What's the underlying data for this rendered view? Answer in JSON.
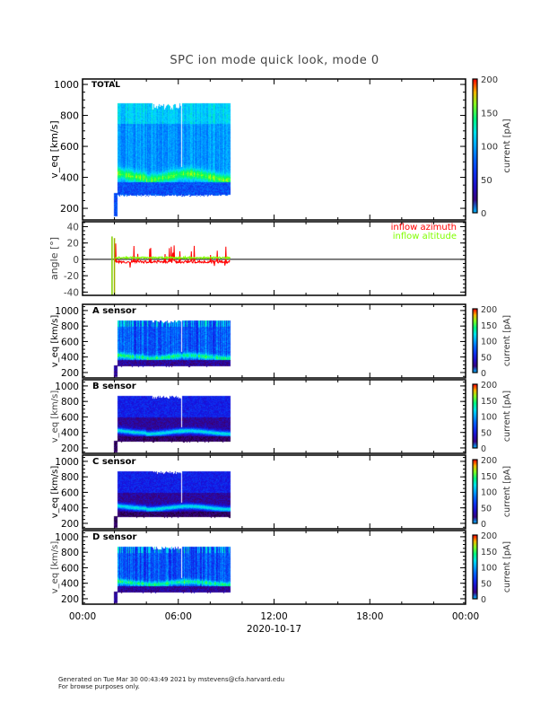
{
  "title": "SPC ion mode quick look, mode 0",
  "footer": {
    "line1": "Generated on Tue Mar 30 00:43:49 2021 by mstevens@cfa.harvard.edu",
    "line2": "For browse purposes only."
  },
  "chart_data": [
    {
      "type": "heatmap",
      "panel_label": "TOTAL",
      "ylabel": "v_eq [km/s]",
      "yticks": [
        "200",
        "400",
        "600",
        "800",
        "1000"
      ],
      "ylim": [
        125,
        1035
      ],
      "colorbar": {
        "label": "current [pA]",
        "ticks": [
          "0",
          "50",
          "100",
          "150",
          "200"
        ],
        "range": [
          0,
          200
        ]
      },
      "data_extent": {
        "time": [
          "01:55",
          "09:15"
        ],
        "velocity": [
          280,
          880
        ]
      },
      "beam_velocity": 420
    },
    {
      "type": "line",
      "ylabel": "angle [°]",
      "yticks": [
        "-40",
        "-20",
        "0",
        "20",
        "40"
      ],
      "ylim": [
        -44,
        46
      ],
      "series": [
        {
          "name": "inflow azimuth",
          "color": "#ff0000",
          "typical": -3
        },
        {
          "name": "inflow altitude",
          "color": "#80ff00",
          "typical": 2
        }
      ]
    },
    {
      "type": "heatmap",
      "panel_label": "A sensor",
      "ylabel": "v_eq [km/s]",
      "yticks": [
        "200",
        "400",
        "600",
        "800",
        "1000"
      ],
      "ylim": [
        130,
        1080
      ],
      "colorbar": {
        "label": "current [pA]",
        "ticks": [
          "0",
          "50",
          "100",
          "150",
          "200"
        ],
        "range": [
          0,
          200
        ]
      }
    },
    {
      "type": "heatmap",
      "panel_label": "B sensor",
      "ylabel": "v_eq [km/s]",
      "yticks": [
        "200",
        "400",
        "600",
        "800",
        "1000"
      ],
      "ylim": [
        130,
        1080
      ],
      "colorbar": {
        "label": "current [pA]",
        "ticks": [
          "0",
          "50",
          "100",
          "150",
          "200"
        ],
        "range": [
          0,
          200
        ]
      }
    },
    {
      "type": "heatmap",
      "panel_label": "C sensor",
      "ylabel": "v_eq [km/s]",
      "yticks": [
        "200",
        "400",
        "600",
        "800",
        "1000"
      ],
      "ylim": [
        130,
        1080
      ],
      "colorbar": {
        "label": "current [pA]",
        "ticks": [
          "0",
          "50",
          "100",
          "150",
          "200"
        ],
        "range": [
          0,
          200
        ]
      }
    },
    {
      "type": "heatmap",
      "panel_label": "D sensor",
      "ylabel": "v_eq [km/s]",
      "yticks": [
        "200",
        "400",
        "600",
        "800",
        "1000"
      ],
      "ylim": [
        130,
        1080
      ],
      "colorbar": {
        "label": "current [pA]",
        "ticks": [
          "0",
          "50",
          "100",
          "150",
          "200"
        ],
        "range": [
          0,
          200
        ]
      }
    }
  ],
  "xaxis": {
    "ticks": [
      "00:00",
      "06:00",
      "12:00",
      "18:00",
      "00:00"
    ],
    "hours": [
      0,
      6,
      12,
      18,
      24
    ],
    "date_label": "2020-10-17"
  }
}
